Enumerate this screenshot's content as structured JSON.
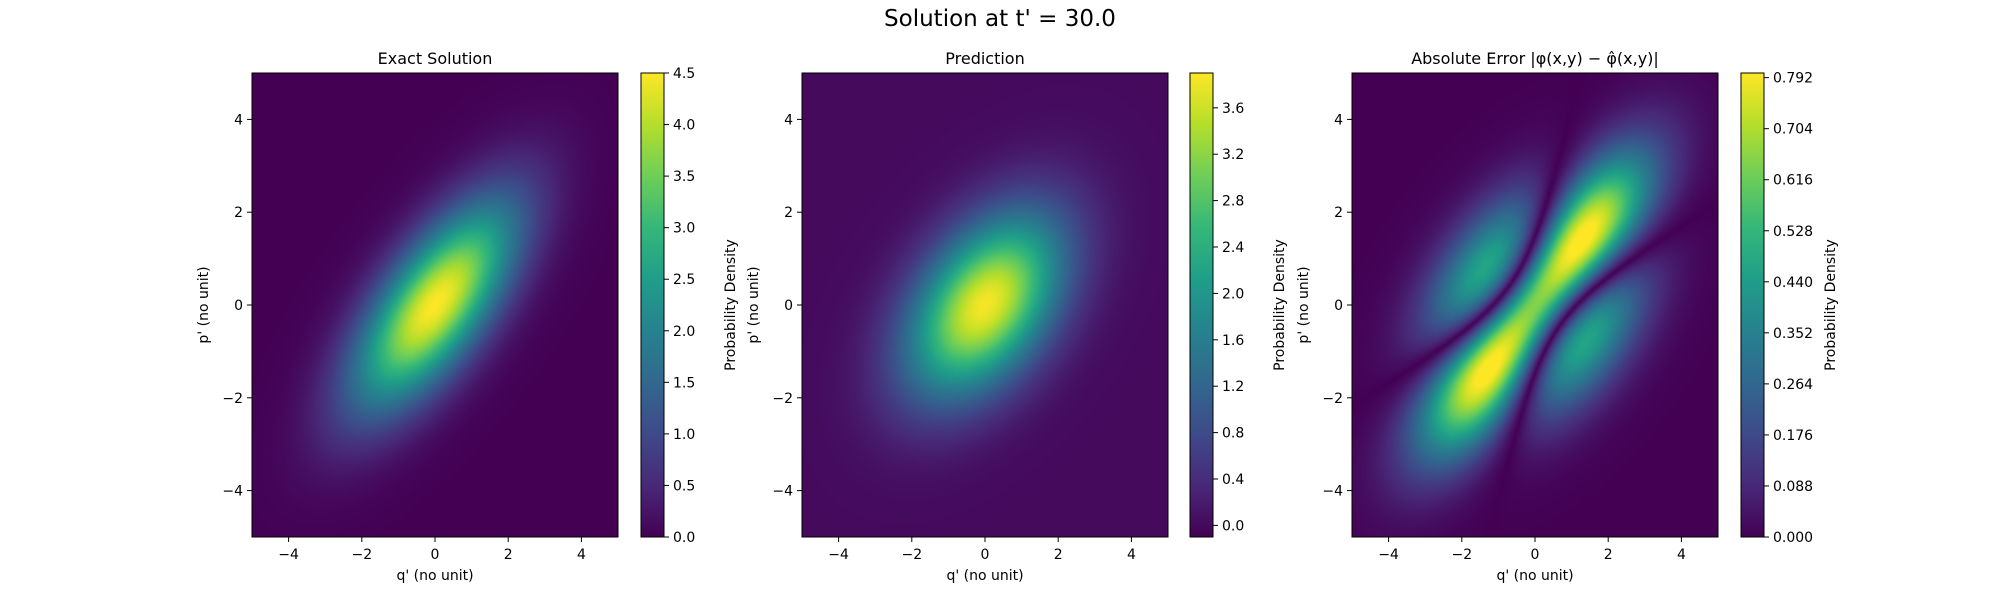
{
  "figure": {
    "suptitle": "Solution at t' = 30.0"
  },
  "colormap": {
    "name": "viridis",
    "stops": [
      "#440154",
      "#482878",
      "#3e4a89",
      "#31688e",
      "#26828e",
      "#1f9e89",
      "#35b779",
      "#6ece58",
      "#b5de2b",
      "#fde725"
    ]
  },
  "chart_data": [
    {
      "type": "heatmap",
      "title": "Exact Solution",
      "xlabel": "q' (no unit)",
      "ylabel": "p' (no unit)",
      "xlim": [
        -5,
        5
      ],
      "ylim": [
        -5,
        5
      ],
      "xticks": [
        -4,
        -2,
        0,
        2,
        4
      ],
      "yticks": [
        -4,
        -2,
        0,
        2,
        4
      ],
      "colorbar": {
        "label": "Probability Density",
        "range": [
          0.0,
          4.5
        ],
        "ticks": [
          "0.0",
          "0.5",
          "1.0",
          "1.5",
          "2.0",
          "2.5",
          "3.0",
          "3.5",
          "4.0",
          "4.5"
        ]
      },
      "field": {
        "description": "single tilted Gaussian blob",
        "components": [
          {
            "center": [
              0.0,
              0.0
            ],
            "sigma_major": 2.0,
            "sigma_minor": 0.85,
            "angle_deg": 45,
            "peak": 4.5
          }
        ]
      }
    },
    {
      "type": "heatmap",
      "title": "Prediction",
      "xlabel": "q' (no unit)",
      "ylabel": "p' (no unit)",
      "xlim": [
        -5,
        5
      ],
      "ylim": [
        -5,
        5
      ],
      "xticks": [
        -4,
        -2,
        0,
        2,
        4
      ],
      "yticks": [
        -4,
        -2,
        0,
        2,
        4
      ],
      "colorbar": {
        "label": "Probability Density",
        "range": [
          -0.1,
          3.9
        ],
        "ticks": [
          "0.0",
          "0.4",
          "0.8",
          "1.2",
          "1.6",
          "2.0",
          "2.4",
          "2.8",
          "3.2",
          "3.6"
        ]
      },
      "field": {
        "description": "broader, less tilted Gaussian blob",
        "components": [
          {
            "center": [
              0.0,
              0.0
            ],
            "sigma_major": 1.7,
            "sigma_minor": 1.05,
            "angle_deg": 40,
            "peak": 3.85
          }
        ]
      }
    },
    {
      "type": "heatmap",
      "title": "Absolute Error |φ(x,y) − φ̂(x,y)|",
      "xlabel": "q' (no unit)",
      "ylabel": "p' (no unit)",
      "xlim": [
        -5,
        5
      ],
      "ylim": [
        -5,
        5
      ],
      "xticks": [
        -4,
        -2,
        0,
        2,
        4
      ],
      "yticks": [
        -4,
        -2,
        0,
        2,
        4
      ],
      "colorbar": {
        "label": "Probability Density",
        "range": [
          0.0,
          0.8
        ],
        "ticks": [
          "0.000",
          "0.088",
          "0.176",
          "0.264",
          "0.352",
          "0.440",
          "0.528",
          "0.616",
          "0.704",
          "0.792"
        ]
      },
      "field": {
        "description": "absolute difference of the two fields above",
        "components": []
      }
    }
  ]
}
